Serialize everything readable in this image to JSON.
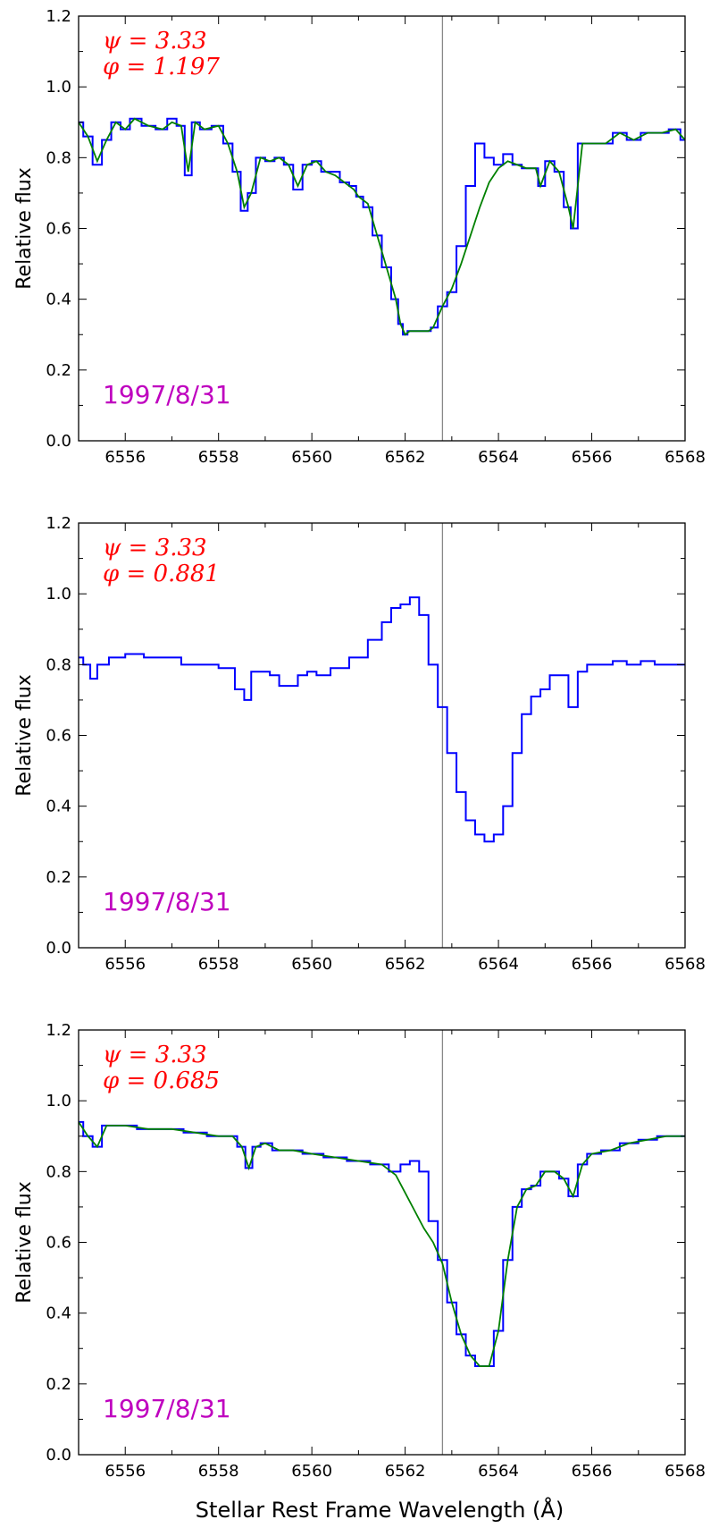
{
  "figure": {
    "xlabel": "Stellar Rest Frame Wavelength (Å)"
  },
  "colors": {
    "observed": "#0000ff",
    "model": "#008000",
    "vline": "#888888",
    "date": "#bf00bf",
    "params": "#ff0000"
  },
  "chart_data": [
    {
      "type": "line",
      "ylabel": "Relative flux",
      "xlim": [
        6555,
        6568
      ],
      "ylim": [
        0.0,
        1.2
      ],
      "xticks": [
        6556,
        6558,
        6560,
        6562,
        6564,
        6566,
        6568
      ],
      "yticks": [
        "0.0",
        "0.2",
        "0.4",
        "0.6",
        "0.8",
        "1.0",
        "1.2"
      ],
      "vline": 6562.8,
      "date": "1997/8/31",
      "params": [
        "ψ = 3.33",
        "φ = 1.197"
      ],
      "series": [
        {
          "style": "steps",
          "x": [
            6555.0,
            6555.2,
            6555.4,
            6555.6,
            6555.8,
            6556.0,
            6556.2,
            6556.5,
            6556.8,
            6557.0,
            6557.2,
            6557.35,
            6557.5,
            6557.7,
            6558.0,
            6558.2,
            6558.4,
            6558.55,
            6558.7,
            6558.9,
            6559.1,
            6559.3,
            6559.5,
            6559.7,
            6559.9,
            6560.1,
            6560.3,
            6560.5,
            6560.7,
            6560.9,
            6561.0,
            6561.2,
            6561.4,
            6561.6,
            6561.8,
            6561.9,
            6562.0,
            6562.1,
            6562.3,
            6562.5,
            6562.6,
            6562.8,
            6563.0,
            6563.2,
            6563.4,
            6563.6,
            6563.8,
            6564.0,
            6564.2,
            6564.4,
            6564.6,
            6564.8,
            6564.9,
            6565.1,
            6565.3,
            6565.5,
            6565.6,
            6565.8,
            6566.0,
            6566.3,
            6566.6,
            6566.9,
            6567.2,
            6567.5,
            6567.8,
            6568.0
          ],
          "y": [
            0.9,
            0.86,
            0.78,
            0.85,
            0.9,
            0.88,
            0.91,
            0.89,
            0.88,
            0.91,
            0.89,
            0.75,
            0.9,
            0.88,
            0.89,
            0.84,
            0.76,
            0.65,
            0.7,
            0.8,
            0.79,
            0.8,
            0.78,
            0.71,
            0.78,
            0.79,
            0.76,
            0.76,
            0.73,
            0.72,
            0.69,
            0.66,
            0.58,
            0.49,
            0.4,
            0.33,
            0.3,
            0.31,
            0.31,
            0.31,
            0.32,
            0.38,
            0.42,
            0.55,
            0.72,
            0.84,
            0.8,
            0.78,
            0.81,
            0.78,
            0.77,
            0.77,
            0.72,
            0.79,
            0.76,
            0.66,
            0.6,
            0.84,
            0.84,
            0.84,
            0.87,
            0.85,
            0.87,
            0.87,
            0.88,
            0.85
          ]
        },
        {
          "style": "line",
          "x": [
            6555.0,
            6555.2,
            6555.4,
            6555.6,
            6555.8,
            6556.0,
            6556.2,
            6556.5,
            6556.8,
            6557.0,
            6557.2,
            6557.35,
            6557.5,
            6557.7,
            6558.0,
            6558.2,
            6558.4,
            6558.55,
            6558.7,
            6558.9,
            6559.1,
            6559.3,
            6559.5,
            6559.7,
            6559.9,
            6560.1,
            6560.3,
            6560.5,
            6560.7,
            6560.9,
            6561.0,
            6561.2,
            6561.4,
            6561.6,
            6561.8,
            6561.9,
            6562.0,
            6562.1,
            6562.3,
            6562.5,
            6562.6,
            6562.8,
            6563.0,
            6563.2,
            6563.4,
            6563.6,
            6563.8,
            6564.0,
            6564.2,
            6564.4,
            6564.6,
            6564.8,
            6564.9,
            6565.1,
            6565.3,
            6565.5,
            6565.6,
            6565.8,
            6566.0,
            6566.3,
            6566.6,
            6566.9,
            6567.2,
            6567.5,
            6567.8,
            6568.0
          ],
          "y": [
            0.9,
            0.86,
            0.79,
            0.85,
            0.9,
            0.88,
            0.91,
            0.89,
            0.88,
            0.9,
            0.89,
            0.76,
            0.9,
            0.88,
            0.89,
            0.84,
            0.76,
            0.66,
            0.7,
            0.8,
            0.79,
            0.8,
            0.78,
            0.72,
            0.78,
            0.79,
            0.76,
            0.75,
            0.73,
            0.71,
            0.69,
            0.67,
            0.58,
            0.49,
            0.4,
            0.33,
            0.3,
            0.31,
            0.31,
            0.31,
            0.32,
            0.38,
            0.43,
            0.5,
            0.58,
            0.66,
            0.73,
            0.77,
            0.79,
            0.78,
            0.77,
            0.77,
            0.72,
            0.79,
            0.76,
            0.66,
            0.6,
            0.84,
            0.84,
            0.84,
            0.87,
            0.85,
            0.87,
            0.87,
            0.88,
            0.85
          ]
        }
      ]
    },
    {
      "type": "line",
      "ylabel": "Relative flux",
      "xlim": [
        6555,
        6568
      ],
      "ylim": [
        0.0,
        1.2
      ],
      "xticks": [
        6556,
        6558,
        6560,
        6562,
        6564,
        6566,
        6568
      ],
      "yticks": [
        "0.0",
        "0.2",
        "0.4",
        "0.6",
        "0.8",
        "1.0",
        "1.2"
      ],
      "vline": 6562.8,
      "date": "1997/8/31",
      "params": [
        "ψ = 3.33",
        "φ = 0.881"
      ],
      "series": [
        {
          "style": "steps",
          "x": [
            6555.0,
            6555.2,
            6555.3,
            6555.5,
            6555.8,
            6556.2,
            6556.6,
            6557.0,
            6557.4,
            6557.8,
            6558.2,
            6558.5,
            6558.6,
            6558.8,
            6559.0,
            6559.2,
            6559.4,
            6559.6,
            6559.8,
            6560.0,
            6560.2,
            6560.6,
            6561.0,
            6561.4,
            6561.6,
            6561.8,
            6562.0,
            6562.2,
            6562.4,
            6562.6,
            6562.8,
            6563.0,
            6563.2,
            6563.4,
            6563.6,
            6563.8,
            6564.0,
            6564.2,
            6564.4,
            6564.6,
            6564.8,
            6565.0,
            6565.2,
            6565.4,
            6565.6,
            6565.8,
            6566.0,
            6566.3,
            6566.6,
            6566.9,
            6567.2,
            6567.5,
            6567.8,
            6568.0
          ],
          "y": [
            0.82,
            0.8,
            0.76,
            0.8,
            0.82,
            0.83,
            0.82,
            0.82,
            0.8,
            0.8,
            0.79,
            0.73,
            0.7,
            0.78,
            0.78,
            0.77,
            0.74,
            0.74,
            0.77,
            0.78,
            0.77,
            0.79,
            0.82,
            0.87,
            0.92,
            0.96,
            0.97,
            0.99,
            0.94,
            0.8,
            0.68,
            0.55,
            0.44,
            0.36,
            0.32,
            0.3,
            0.32,
            0.4,
            0.55,
            0.66,
            0.71,
            0.73,
            0.77,
            0.77,
            0.68,
            0.78,
            0.8,
            0.8,
            0.81,
            0.8,
            0.81,
            0.8,
            0.8,
            0.8
          ]
        }
      ]
    },
    {
      "type": "line",
      "ylabel": "Relative flux",
      "xlim": [
        6555,
        6568
      ],
      "ylim": [
        0.0,
        1.2
      ],
      "xticks": [
        6556,
        6558,
        6560,
        6562,
        6564,
        6566,
        6568
      ],
      "yticks": [
        "0.0",
        "0.2",
        "0.4",
        "0.6",
        "0.8",
        "1.0",
        "1.2"
      ],
      "vline": 6562.8,
      "date": "1997/8/31",
      "params": [
        "ψ = 3.33",
        "φ = 0.685"
      ],
      "series": [
        {
          "style": "steps",
          "x": [
            6555.0,
            6555.2,
            6555.4,
            6555.6,
            6556.0,
            6556.5,
            6557.0,
            6557.5,
            6558.0,
            6558.3,
            6558.5,
            6558.65,
            6558.8,
            6559.0,
            6559.3,
            6559.6,
            6560.0,
            6560.5,
            6561.0,
            6561.5,
            6561.8,
            6562.0,
            6562.2,
            6562.4,
            6562.6,
            6562.8,
            6563.0,
            6563.2,
            6563.4,
            6563.6,
            6563.8,
            6564.0,
            6564.2,
            6564.4,
            6564.6,
            6564.8,
            6565.0,
            6565.2,
            6565.4,
            6565.6,
            6565.8,
            6566.0,
            6566.4,
            6566.8,
            6567.2,
            6567.6,
            6568.0
          ],
          "y": [
            0.94,
            0.9,
            0.87,
            0.93,
            0.93,
            0.92,
            0.92,
            0.91,
            0.9,
            0.9,
            0.87,
            0.81,
            0.87,
            0.88,
            0.86,
            0.86,
            0.85,
            0.84,
            0.83,
            0.82,
            0.8,
            0.82,
            0.83,
            0.8,
            0.66,
            0.55,
            0.43,
            0.34,
            0.28,
            0.25,
            0.25,
            0.35,
            0.55,
            0.7,
            0.75,
            0.76,
            0.8,
            0.8,
            0.78,
            0.73,
            0.82,
            0.85,
            0.86,
            0.88,
            0.89,
            0.9,
            0.9
          ]
        },
        {
          "style": "line",
          "x": [
            6555.0,
            6555.2,
            6555.4,
            6555.6,
            6556.0,
            6556.5,
            6557.0,
            6557.5,
            6558.0,
            6558.3,
            6558.5,
            6558.65,
            6558.8,
            6559.0,
            6559.3,
            6559.6,
            6560.0,
            6560.5,
            6561.0,
            6561.5,
            6561.8,
            6562.0,
            6562.2,
            6562.4,
            6562.6,
            6562.8,
            6563.0,
            6563.2,
            6563.4,
            6563.6,
            6563.8,
            6564.0,
            6564.2,
            6564.4,
            6564.6,
            6564.8,
            6565.0,
            6565.2,
            6565.4,
            6565.6,
            6565.8,
            6566.0,
            6566.4,
            6566.8,
            6567.2,
            6567.6,
            6568.0
          ],
          "y": [
            0.94,
            0.9,
            0.87,
            0.93,
            0.93,
            0.92,
            0.92,
            0.91,
            0.9,
            0.9,
            0.87,
            0.81,
            0.87,
            0.88,
            0.86,
            0.86,
            0.85,
            0.84,
            0.83,
            0.82,
            0.79,
            0.74,
            0.69,
            0.64,
            0.6,
            0.54,
            0.43,
            0.34,
            0.28,
            0.25,
            0.25,
            0.35,
            0.55,
            0.7,
            0.75,
            0.76,
            0.8,
            0.8,
            0.78,
            0.73,
            0.82,
            0.85,
            0.86,
            0.88,
            0.89,
            0.9,
            0.9
          ]
        }
      ]
    }
  ]
}
